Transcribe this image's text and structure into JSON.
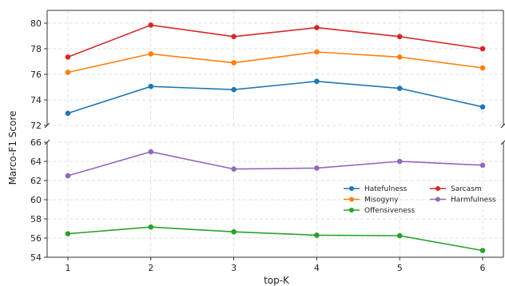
{
  "chart_data": {
    "type": "line",
    "broken_axis": true,
    "xlabel": "top-K",
    "ylabel": "Marco-F1 Score",
    "x": [
      1,
      2,
      3,
      4,
      5,
      6
    ],
    "x_ticks": [
      "1",
      "2",
      "3",
      "4",
      "5",
      "6"
    ],
    "xlim": [
      0.75,
      6.25
    ],
    "grid": true,
    "legend_placement": "lower-right of bottom panel, 2 columns",
    "top_panel": {
      "ylim": [
        72,
        81
      ],
      "y_ticks": [
        "72",
        "74",
        "76",
        "78",
        "80"
      ],
      "series": [
        {
          "name": "Hatefulness",
          "color": "#1f77b4",
          "values": [
            72.95,
            75.05,
            74.8,
            75.45,
            74.9,
            73.45
          ]
        },
        {
          "name": "Misogyny",
          "color": "#ff7f0e",
          "values": [
            76.15,
            77.6,
            76.9,
            77.75,
            77.35,
            76.5
          ]
        },
        {
          "name": "Sarcasm",
          "color": "#d62728",
          "values": [
            77.35,
            79.85,
            78.95,
            79.65,
            78.95,
            78.0
          ]
        }
      ]
    },
    "bottom_panel": {
      "ylim": [
        54,
        66
      ],
      "y_ticks": [
        "54",
        "56",
        "58",
        "60",
        "62",
        "64",
        "66"
      ],
      "series": [
        {
          "name": "Offensiveness",
          "color": "#2ca02c",
          "values": [
            56.45,
            57.15,
            56.65,
            56.3,
            56.25,
            54.7
          ]
        },
        {
          "name": "Harmfulness",
          "color": "#9467bd",
          "values": [
            62.5,
            65.0,
            63.2,
            63.3,
            64.0,
            63.6
          ]
        }
      ]
    },
    "legend": [
      {
        "name": "Hatefulness",
        "color": "#1f77b4"
      },
      {
        "name": "Sarcasm",
        "color": "#d62728"
      },
      {
        "name": "Misogyny",
        "color": "#ff7f0e"
      },
      {
        "name": "Harmfulness",
        "color": "#9467bd"
      },
      {
        "name": "Offensiveness",
        "color": "#2ca02c"
      }
    ]
  }
}
